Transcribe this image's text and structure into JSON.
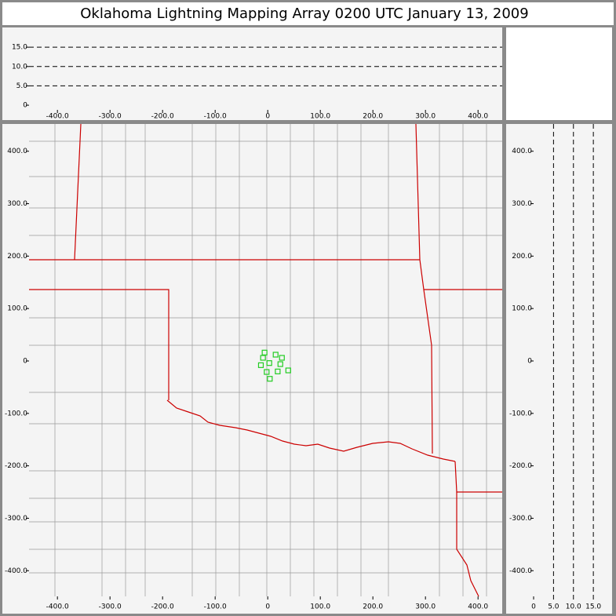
{
  "title": "Oklahoma Lightning Mapping Array   0200 UTC  January 13, 2009",
  "altitude_panel": {
    "xlim": [
      -454,
      446
    ],
    "ylim": [
      -1.2,
      20.1
    ],
    "xticks": [
      {
        "value": -400,
        "label": "-400.0"
      },
      {
        "value": -300,
        "label": "-300.0"
      },
      {
        "value": -200,
        "label": "-200.0"
      },
      {
        "value": -100,
        "label": "-100.0"
      },
      0,
      {
        "value": 100,
        "label": "100.0"
      },
      {
        "value": 200,
        "label": "200.0"
      },
      {
        "value": 300,
        "label": "300.0"
      },
      {
        "value": 400,
        "label": "400.0"
      }
    ],
    "yticks": [
      0,
      {
        "value": 5,
        "label": "5.0"
      },
      {
        "value": 10,
        "label": "10.0"
      },
      {
        "value": 15,
        "label": "15.0"
      }
    ]
  },
  "plan_panel": {
    "xlim": [
      -454,
      446
    ],
    "ylim": [
      -449,
      452
    ],
    "xticks": [
      {
        "value": -400,
        "label": "-400.0"
      },
      {
        "value": -300,
        "label": "-300.0"
      },
      {
        "value": -200,
        "label": "-200.0"
      },
      {
        "value": -100,
        "label": "-100.0"
      },
      0,
      {
        "value": 100,
        "label": "100.0"
      },
      {
        "value": 200,
        "label": "200.0"
      },
      {
        "value": 300,
        "label": "300.0"
      },
      {
        "value": 400,
        "label": "400.0"
      }
    ],
    "yticks": [
      {
        "value": -400,
        "label": "-400.0"
      },
      {
        "value": -300,
        "label": "-300.0"
      },
      {
        "value": -200,
        "label": "-200.0"
      },
      {
        "value": -100,
        "label": "-100.0"
      },
      0,
      {
        "value": 100,
        "label": "100.0"
      },
      {
        "value": 200,
        "label": "200.0"
      },
      {
        "value": 300,
        "label": "300.0"
      },
      {
        "value": 400,
        "label": "400.0"
      }
    ],
    "sources": {
      "color": "#22cc22",
      "x": [
        -6,
        -9,
        15,
        27,
        3,
        -13,
        24,
        39,
        -2,
        19,
        4
      ],
      "y": [
        16,
        6,
        12,
        6,
        -4,
        -8,
        -6,
        -18,
        -21,
        -20,
        -34
      ]
    }
  },
  "side_panel": {
    "xlim": [
      0,
      19.7
    ],
    "ylim": [
      -449,
      452
    ],
    "xticks": [
      0,
      {
        "value": 5,
        "label": "5.0"
      },
      {
        "value": 10,
        "label": "10.0"
      },
      {
        "value": 15,
        "label": "15.0"
      }
    ],
    "yticks": [
      {
        "value": -400,
        "label": "-400.0"
      },
      {
        "value": -300,
        "label": "-300.0"
      },
      {
        "value": -200,
        "label": "-200.0"
      },
      {
        "value": -100,
        "label": "-100.0"
      },
      0,
      {
        "value": 100,
        "label": "100.0"
      },
      {
        "value": 200,
        "label": "200.0"
      },
      {
        "value": 300,
        "label": "300.0"
      },
      {
        "value": 400,
        "label": "400.0"
      }
    ]
  }
}
